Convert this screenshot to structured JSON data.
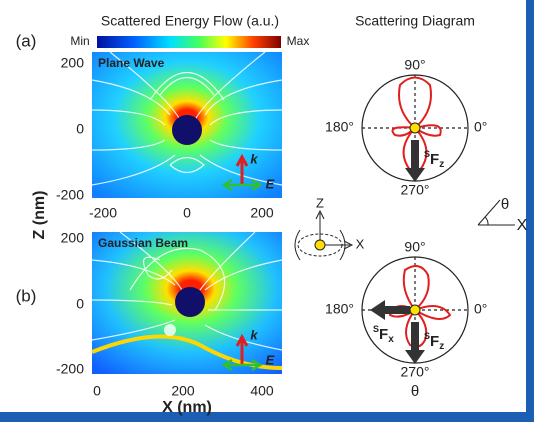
{
  "colorbar": {
    "title": "Scattered Energy Flow (a.u.)",
    "min": "Min",
    "max": "Max"
  },
  "panels": [
    {
      "tag": "(a)",
      "label": "Plane Wave",
      "yticks": [
        "200",
        "0",
        "-200"
      ],
      "xticks": [
        "-200",
        "0",
        "200"
      ],
      "k": "k",
      "E": "E"
    },
    {
      "tag": "(b)",
      "label": "Gaussian Beam",
      "yticks": [
        "200",
        "0",
        "-200"
      ],
      "xticks": [
        "0",
        "200",
        "400"
      ],
      "k": "k",
      "E": "E"
    }
  ],
  "axes": {
    "y_label": "Z (nm)",
    "x_label": "X (nm)"
  },
  "diagram": {
    "title": "Scattering Diagram",
    "theta": "θ",
    "polars": [
      {
        "top": "90°",
        "left": "180°",
        "right": "0°",
        "bottom": "270°",
        "forces": [
          {
            "pre": "S",
            "base": "F",
            "sub": "z"
          }
        ]
      },
      {
        "top": "90°",
        "left": "180°",
        "right": "0°",
        "bottom": "270°",
        "forces": [
          {
            "pre": "S",
            "base": "F",
            "sub": "x"
          },
          {
            "pre": "S",
            "base": "F",
            "sub": "z"
          }
        ]
      }
    ]
  },
  "inset": {
    "z": "Z",
    "x": "X"
  },
  "angle_inset": {
    "theta": "θ",
    "x": "X"
  }
}
